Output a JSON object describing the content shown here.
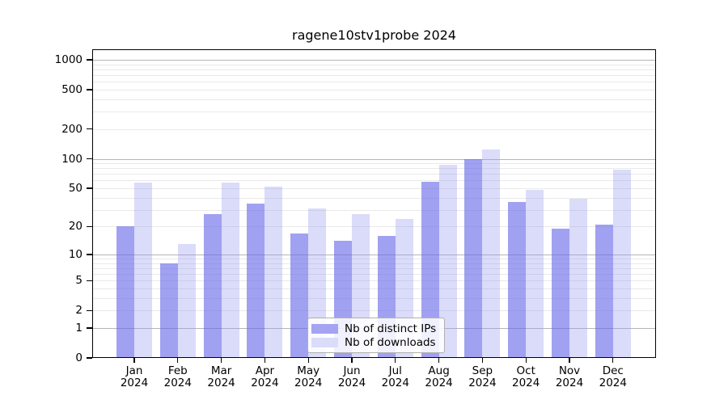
{
  "chart_data": {
    "type": "bar",
    "title": "ragene10stv1probe 2024",
    "categories": [
      "Jan",
      "Feb",
      "Mar",
      "Apr",
      "May",
      "Jun",
      "Jul",
      "Aug",
      "Sep",
      "Oct",
      "Nov",
      "Dec"
    ],
    "x_year": "2024",
    "series": [
      {
        "name": "Nb of distinct IPs",
        "color": "#a4a4f2",
        "fill": "rgba(103,103,233,0.62)",
        "values": [
          20,
          8,
          27,
          35,
          17,
          14,
          16,
          58,
          100,
          36,
          19,
          21
        ]
      },
      {
        "name": "Nb of downloads",
        "color": "#dbdbfa",
        "fill": "rgba(152,152,241,0.35)",
        "values": [
          57,
          13,
          57,
          52,
          31,
          27,
          24,
          87,
          125,
          48,
          39,
          78
        ]
      }
    ],
    "y_ticks": [
      0,
      1,
      2,
      5,
      10,
      20,
      50,
      100,
      200,
      500,
      1000
    ],
    "y_major_ticks": [
      1,
      10,
      100,
      1000
    ],
    "y_scale": "log10(1+v)",
    "ylim": [
      0,
      1275
    ],
    "xlabel": "",
    "ylabel": "",
    "grid": true,
    "legend_position": "inside-bottom-center"
  }
}
